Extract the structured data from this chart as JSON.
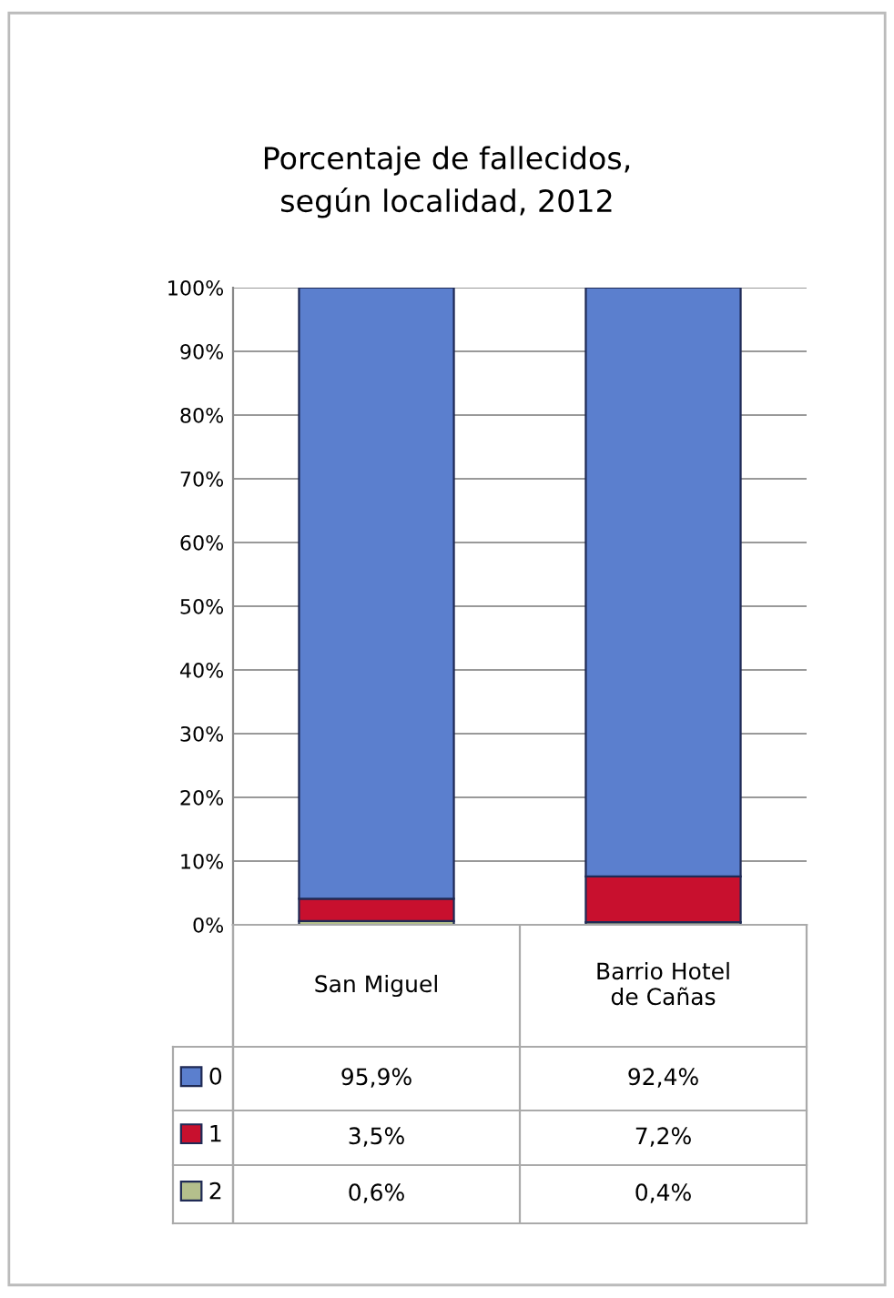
{
  "chart_data": {
    "type": "bar",
    "title": "Porcentaje de fallecidos, según localidad, 2012",
    "stacked": true,
    "categories": [
      "San Miguel",
      "Barrio Hotel de Cañas"
    ],
    "series": [
      {
        "name": "2",
        "color": "#b4bf8c",
        "values": [
          0.6,
          0.4
        ],
        "value_labels": [
          "0,6%",
          "0,4%"
        ]
      },
      {
        "name": "1",
        "color": "#c8102e",
        "values": [
          3.5,
          7.2
        ],
        "value_labels": [
          "3,5%",
          "7,2%"
        ]
      },
      {
        "name": "0",
        "color": "#5b7fce",
        "values": [
          95.9,
          92.4
        ],
        "value_labels": [
          "95,9%",
          "92,4%"
        ]
      }
    ],
    "ylim": [
      0,
      100
    ],
    "yticks": [
      {
        "value": 0,
        "label": "0%"
      },
      {
        "value": 10,
        "label": "10%"
      },
      {
        "value": 20,
        "label": "20%"
      },
      {
        "value": 30,
        "label": "30%"
      },
      {
        "value": 40,
        "label": "40%"
      },
      {
        "value": 50,
        "label": "50%"
      },
      {
        "value": 60,
        "label": "60%"
      },
      {
        "value": 70,
        "label": "70%"
      },
      {
        "value": 80,
        "label": "80%"
      },
      {
        "value": 90,
        "label": "90%"
      },
      {
        "value": 100,
        "label": "100%"
      }
    ],
    "grid": "y",
    "legend": "bottom"
  }
}
